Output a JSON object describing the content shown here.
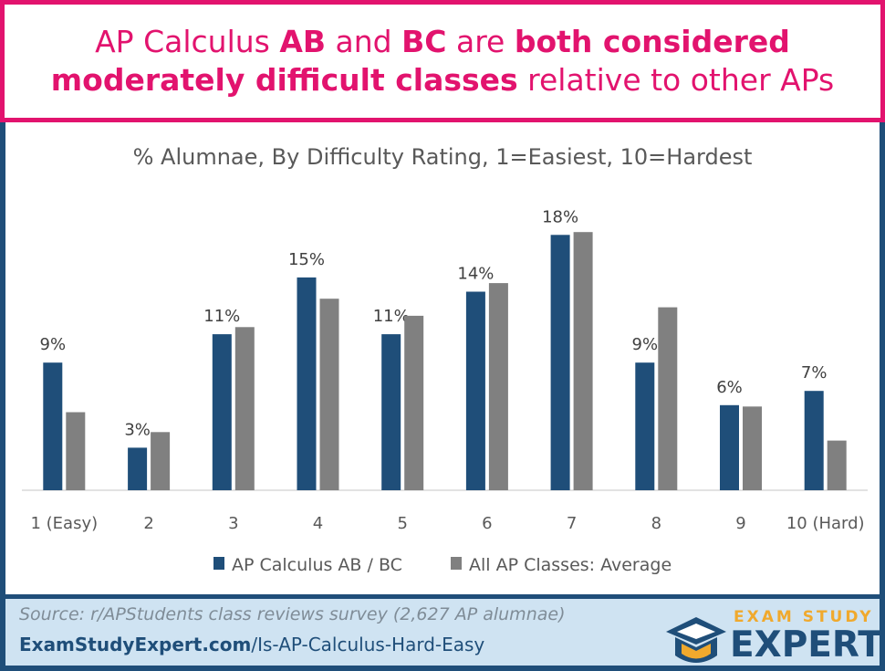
{
  "header": {
    "line1": [
      {
        "text": "AP Calculus ",
        "bold": false
      },
      {
        "text": "AB",
        "bold": true
      },
      {
        "text": " and ",
        "bold": false
      },
      {
        "text": "BC",
        "bold": true
      },
      {
        "text": " are ",
        "bold": false
      },
      {
        "text": "both considered",
        "bold": true
      }
    ],
    "line2": [
      {
        "text": "moderately difficult classes",
        "bold": true
      },
      {
        "text": " relative to other APs",
        "bold": false
      }
    ]
  },
  "colors": {
    "accent": "#e2136e",
    "navy": "#1f4e79",
    "series_ab_bc": "#1f4e79",
    "series_avg": "#808080",
    "footer_bg": "#cfe3f2",
    "logo_orange": "#f0a92d"
  },
  "chart_data": {
    "type": "bar",
    "title": "% Alumnae, By Difficulty Rating, 1=Easiest, 10=Hardest",
    "categories": [
      "1 (Easy)",
      "2",
      "3",
      "4",
      "5",
      "6",
      "7",
      "8",
      "9",
      "10 (Hard)"
    ],
    "series": [
      {
        "name": "AP Calculus AB / BC",
        "values": [
          9,
          3,
          11,
          15,
          11,
          14,
          18,
          9,
          6,
          7
        ],
        "labels": [
          "9%",
          "3%",
          "11%",
          "15%",
          "11%",
          "14%",
          "18%",
          "9%",
          "6%",
          "7%"
        ]
      },
      {
        "name": "All AP Classes: Average",
        "values": [
          5.5,
          4.1,
          11.5,
          13.5,
          12.3,
          14.6,
          18.2,
          12.9,
          5.9,
          3.5
        ]
      }
    ],
    "ylim": [
      0,
      19.5
    ],
    "grid": false,
    "legend": "bottom"
  },
  "footer": {
    "source": "Source: r/APStudents class reviews survey (2,627 AP alumnae)",
    "url_host": "ExamStudyExpert.com",
    "url_path": "/Is-AP-Calculus-Hard-Easy"
  },
  "logo": {
    "top": "EXAM STUDY",
    "main": "EXPERT",
    "icon": "graduation-cap-icon"
  }
}
